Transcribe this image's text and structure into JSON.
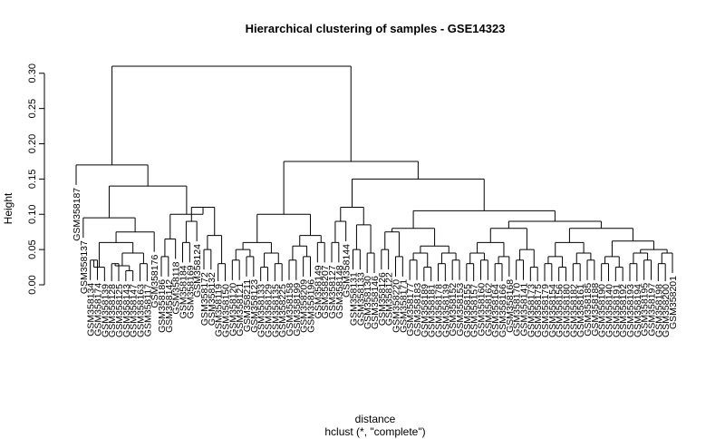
{
  "chart_data": {
    "type": "dendrogram",
    "title": "Hierarchical clustering of samples - GSE14323",
    "xlabel": "distance",
    "sublabel": "hclust (*, \"complete\")",
    "ylabel": "Height",
    "ylim": [
      0,
      0.32
    ],
    "yticks": [
      "0.00",
      "0.05",
      "0.10",
      "0.15",
      "0.20",
      "0.25",
      "0.30"
    ],
    "ytick_values": [
      0,
      0.05,
      0.1,
      0.15,
      0.2,
      0.25,
      0.3
    ],
    "leaves": [
      "GSM358187",
      "GSM358137",
      "GSM358134",
      "GSM358174",
      "GSM358139",
      "GSM358128",
      "GSM358125",
      "GSM358143",
      "GSM358147",
      "GSM358163",
      "GSM358117",
      "GSM358176",
      "GSM358186",
      "GSM358142",
      "GSM358118",
      "GSM358184",
      "GSM358169",
      "GSM358124",
      "GSM358172",
      "GSM358132",
      "GSM358119",
      "GSM358150",
      "GSM358120",
      "GSM358121",
      "GSM358211",
      "GSM358123",
      "GSM358133",
      "GSM358129",
      "GSM358135",
      "GSM358225",
      "GSM358158",
      "GSM358199",
      "GSM358209",
      "GSM358196",
      "GSM358149",
      "GSM358207",
      "GSM358127",
      "GSM358148",
      "GSM358144",
      "GSM358131",
      "GSM358133",
      "GSM358130",
      "GSM358146",
      "GSM358126",
      "GSM358122",
      "GSM358220",
      "GSM358171",
      "GSM358177",
      "GSM358183",
      "GSM358189",
      "GSM358181",
      "GSM358178",
      "GSM358139",
      "GSM358152",
      "GSM358153",
      "GSM358155",
      "GSM358157",
      "GSM358160",
      "GSM358162",
      "GSM358164",
      "GSM358166",
      "GSM358168",
      "GSM358170",
      "GSM358141",
      "GSM358173",
      "GSM358175",
      "GSM358179",
      "GSM358154",
      "GSM358156",
      "GSM358180",
      "GSM358182",
      "GSM358161",
      "GSM358185",
      "GSM358188",
      "GSM358190",
      "GSM358140",
      "GSM358191",
      "GSM358192",
      "GSM358193",
      "GSM358194",
      "GSM358195",
      "GSM358197",
      "GSM358198",
      "GSM358200",
      "GSM358201"
    ],
    "merges": [
      [
        -3,
        -4,
        0.035
      ],
      [
        1,
        -5,
        0.025
      ],
      [
        -6,
        -7,
        0.03
      ],
      [
        -8,
        -9,
        0.02
      ],
      [
        3,
        4,
        0.027
      ],
      [
        -10,
        -11,
        0.03
      ],
      [
        5,
        6,
        0.045
      ],
      [
        2,
        7,
        0.06
      ],
      [
        8,
        -12,
        0.075
      ],
      [
        -2,
        9,
        0.095
      ],
      [
        -13,
        -14,
        0.04
      ],
      [
        11,
        -15,
        0.065
      ],
      [
        -16,
        -17,
        0.06
      ],
      [
        13,
        -18,
        0.09
      ],
      [
        -19,
        -20,
        0.05
      ],
      [
        -21,
        -22,
        0.03
      ],
      [
        15,
        16,
        0.07
      ],
      [
        14,
        17,
        0.11
      ],
      [
        12,
        18,
        0.1
      ],
      [
        10,
        19,
        0.14
      ],
      [
        -1,
        20,
        0.17
      ],
      [
        -23,
        -24,
        0.035
      ],
      [
        -25,
        -26,
        0.04
      ],
      [
        22,
        23,
        0.05
      ],
      [
        -27,
        -28,
        0.025
      ],
      [
        -29,
        -30,
        0.03
      ],
      [
        25,
        26,
        0.045
      ],
      [
        24,
        27,
        0.06
      ],
      [
        -31,
        -32,
        0.035
      ],
      [
        -33,
        -34,
        0.04
      ],
      [
        29,
        30,
        0.055
      ],
      [
        -35,
        -36,
        0.06
      ],
      [
        31,
        32,
        0.07
      ],
      [
        28,
        33,
        0.1
      ],
      [
        -37,
        -38,
        0.06
      ],
      [
        35,
        -39,
        0.09
      ],
      [
        -40,
        -41,
        0.05
      ],
      [
        -42,
        -43,
        0.045
      ],
      [
        37,
        38,
        0.085
      ],
      [
        36,
        39,
        0.11
      ],
      [
        -44,
        -45,
        0.05
      ],
      [
        -46,
        -47,
        0.04
      ],
      [
        41,
        42,
        0.075
      ],
      [
        -48,
        -49,
        0.035
      ],
      [
        -50,
        -51,
        0.025
      ],
      [
        44,
        45,
        0.045
      ],
      [
        -52,
        -53,
        0.03
      ],
      [
        -54,
        -55,
        0.035
      ],
      [
        47,
        48,
        0.045
      ],
      [
        46,
        49,
        0.055
      ],
      [
        43,
        50,
        0.08
      ],
      [
        -56,
        -57,
        0.03
      ],
      [
        -58,
        -59,
        0.035
      ],
      [
        52,
        53,
        0.045
      ],
      [
        -60,
        -61,
        0.03
      ],
      [
        55,
        -62,
        0.04
      ],
      [
        54,
        56,
        0.06
      ],
      [
        -63,
        -64,
        0.035
      ],
      [
        -65,
        -66,
        0.025
      ],
      [
        58,
        59,
        0.05
      ],
      [
        57,
        60,
        0.08
      ],
      [
        -67,
        -68,
        0.03
      ],
      [
        -69,
        -70,
        0.025
      ],
      [
        62,
        63,
        0.04
      ],
      [
        -71,
        -72,
        0.03
      ],
      [
        -73,
        -74,
        0.035
      ],
      [
        65,
        66,
        0.045
      ],
      [
        64,
        67,
        0.06
      ],
      [
        -75,
        -76,
        0.03
      ],
      [
        -77,
        -78,
        0.025
      ],
      [
        69,
        70,
        0.04
      ],
      [
        -79,
        -80,
        0.03
      ],
      [
        -81,
        -82,
        0.035
      ],
      [
        72,
        73,
        0.045
      ],
      [
        -83,
        -84,
        0.03
      ],
      [
        -85,
        75,
        0.045
      ],
      [
        74,
        76,
        0.05
      ],
      [
        71,
        77,
        0.062
      ],
      [
        68,
        78,
        0.08
      ],
      [
        61,
        79,
        0.09
      ],
      [
        51,
        80,
        0.105
      ],
      [
        40,
        81,
        0.15
      ],
      [
        34,
        82,
        0.175
      ],
      [
        21,
        83,
        0.31
      ]
    ]
  }
}
